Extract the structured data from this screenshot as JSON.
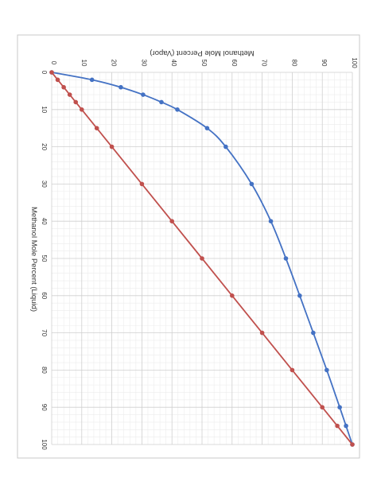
{
  "chart_data": {
    "type": "line",
    "orientation": "rotated 90 degrees clockwise",
    "title": "",
    "xlabel": "Methanol Mole Percent (Liquid)",
    "ylabel": "Methanol Mole Percent (Vapor)",
    "xlim": [
      0,
      100
    ],
    "ylim": [
      0,
      100
    ],
    "x_ticks": [
      0,
      10,
      20,
      30,
      40,
      50,
      60,
      70,
      80,
      90,
      100
    ],
    "y_ticks": [
      0,
      10,
      20,
      30,
      40,
      50,
      60,
      70,
      80,
      90,
      100
    ],
    "grid": true,
    "minor_grid": true,
    "legend": "none",
    "series": [
      {
        "color": "#4472c4",
        "smooth": true,
        "x": [
          0,
          2,
          4,
          6,
          8,
          10,
          15,
          20,
          30,
          40,
          50,
          60,
          70,
          80,
          90,
          95,
          100
        ],
        "y": [
          0,
          13.4,
          23,
          30.4,
          36.5,
          41.8,
          51.7,
          57.9,
          66.5,
          72.9,
          77.9,
          82.5,
          87,
          91.5,
          95.8,
          97.9,
          100
        ]
      },
      {
        "color": "#c0504d",
        "smooth": false,
        "x": [
          0,
          2,
          4,
          6,
          8,
          10,
          15,
          20,
          30,
          40,
          50,
          60,
          70,
          80,
          90,
          95,
          100
        ],
        "y": [
          0,
          2,
          4,
          6,
          8,
          10,
          15,
          20,
          30,
          40,
          50,
          60,
          70,
          80,
          90,
          95,
          100
        ]
      }
    ]
  }
}
